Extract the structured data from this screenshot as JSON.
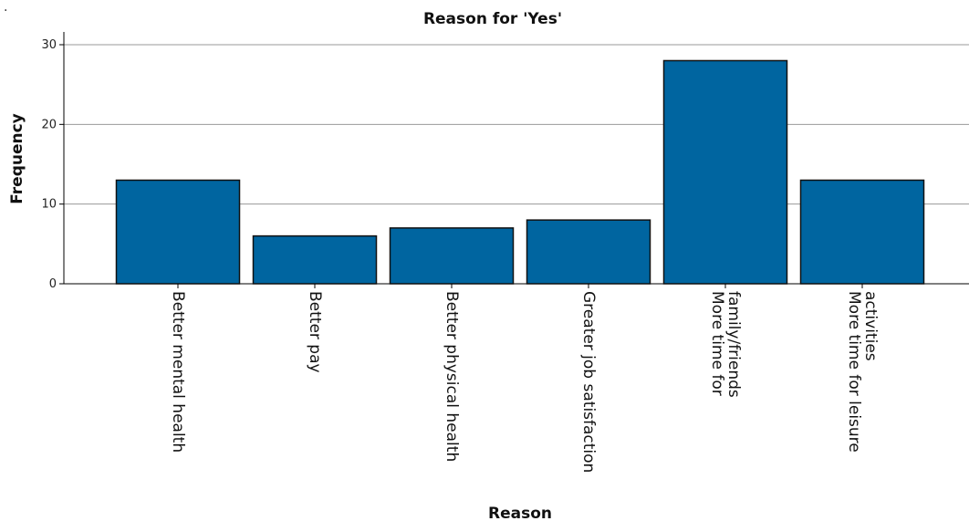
{
  "corner_mark": ".",
  "colors": {
    "bar": "#0065a0",
    "bar_stroke": "#111111",
    "grid": "#9a9a9a"
  },
  "chart_data": {
    "type": "bar",
    "title": "Reason for 'Yes'",
    "xlabel": "Reason",
    "ylabel": "Frequency",
    "ylim": [
      0,
      30
    ],
    "yticks": [
      0,
      10,
      20,
      30
    ],
    "grid": true,
    "categories": [
      [
        "Better mental health"
      ],
      [
        "Better pay"
      ],
      [
        "Better physical health"
      ],
      [
        "Greater job satisfaction"
      ],
      [
        "More time for",
        "family/friends"
      ],
      [
        "More time for leisure",
        "activities"
      ]
    ],
    "values": [
      13,
      6,
      7,
      8,
      28,
      13
    ]
  }
}
